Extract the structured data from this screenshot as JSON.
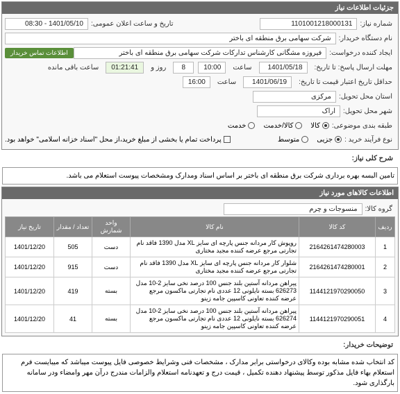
{
  "panel1": {
    "title": "جزئیات اطلاعات نیاز",
    "need_number_label": "شماره نیاز:",
    "need_number": "1101001218000131",
    "announce_label": "تاریخ و ساعت اعلان عمومی:",
    "announce_value": "1401/05/10 - 08:30",
    "buyer_org_label": "نام دستگاه خریدار:",
    "buyer_org": "شرکت سهامی برق منطقه ای باختر",
    "creator_label": "ایجاد کننده درخواست:",
    "creator": "فیروزه مشگانی کارشناس تدارکات شرکت سهامی برق منطقه ای باختر",
    "contact_badge": "اطلاعات تماس خریدار",
    "deadline_label": "مهلت ارسال پاسخ: تا تاریخ:",
    "deadline_date": "1401/05/18",
    "deadline_time_label": "ساعت",
    "deadline_time": "10:00",
    "days_label": "روز و",
    "days": "8",
    "remain_label": "ساعت باقی مانده",
    "remain": "01:21:41",
    "validity_label": "حداقل تاریخ اعتبار قیمت تا تاریخ:",
    "validity_date": "1401/06/19",
    "validity_time_label": "ساعت",
    "validity_time": "16:00",
    "province_label": "استان محل تحویل:",
    "province": "مرکزی",
    "city_label": "شهر محل تحویل:",
    "city": "اراک",
    "goods_service_label": "طبقه بندی موضوعی:",
    "goods_label": "کالا",
    "service_label": "کالا/خدمت",
    "service2_label": "خدمت",
    "buy_type_label": "نوع فرآیند خرید :",
    "buy_all_label": "جزیی",
    "buy_part_label": "متوسط",
    "payment_note": "پرداخت تمام یا بخشی از مبلغ خرید،از محل \"اسناد خزانه اسلامی\" خواهد بود."
  },
  "desc": {
    "label": "شرح کلی نیاز:",
    "text": "تامین البسه بهره برداری شرکت برق منطقه ای باختر بر اساس اسناد ومدارک ومشخصات پیوست استعلام می باشد."
  },
  "panel2": {
    "title": "اطلاعات کالاهای مورد نیاز",
    "group_label": "گروه کالا:",
    "group_value": "منسوجات و چرم"
  },
  "table": {
    "headers": [
      "ردیف",
      "کد کالا",
      "نام کالا",
      "واحد شمارش",
      "تعداد / مقدار",
      "تاریخ نیاز"
    ],
    "rows": [
      [
        "1",
        "2164261474280003",
        "روپوش کار مردانه جنس پارچه ای سایز XL مدل 1390 فاقد نام تجارتی مرجع عرضه کننده مجید مختاری",
        "دست",
        "505",
        "1401/12/20"
      ],
      [
        "2",
        "2164261474280001",
        "شلوار کار مردانه جنس پارچه ای سایز XL مدل 1390 فاقد نام تجارتی مرجع عرضه کننده مجید مختاری",
        "دست",
        "915",
        "1401/12/20"
      ],
      [
        "3",
        "1144121970290050",
        "پیراهن مردانه آستین بلند جنس 100 درصد نخی سایز 2-10 مدل 626273 بسته نایلونی 12 عددی نام تجارتی ماکسون مرجع عرضه کننده تعاونی کاسپین جامه زینو",
        "بسته",
        "419",
        "1401/12/20"
      ],
      [
        "4",
        "1144121970290051",
        "پیراهن مردانه آستین بلند جنس 100 درصد نخی سایز 2-10 مدل 626274 بسته نایلونی 12 عددی نام تجارتی ماکسون مرجع عرضه کننده تعاونی کاسپین جامه زینو",
        "بسته",
        "41",
        "1401/12/20"
      ]
    ]
  },
  "buyer_notes": {
    "label": "توضیحات خریدار:",
    "text": "کد انتخاب شده مشابه بوده وکالای درخواستی برابر مدارک ، مشخصات فنی وشرایط خصوصی فایل پیوست میباشد که میبایست فرم استعلام بهاء فایل مذکور توسط پیشنهاد دهنده تکمیل ، قیمت درج و تعهدنامه استعلام والزامات  مندرج درآن مهر وامضاء ودر سامانه بارگذاری شود."
  }
}
